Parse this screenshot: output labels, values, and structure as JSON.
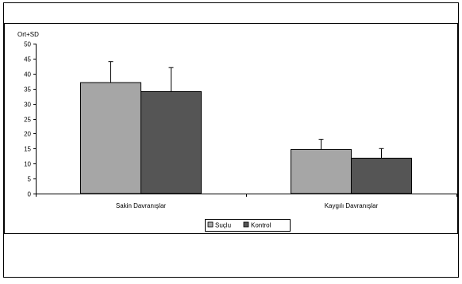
{
  "chart_data": {
    "type": "bar",
    "ylabel": "Ort+SD",
    "ylim": [
      0,
      50
    ],
    "yticks": [
      0,
      5,
      10,
      15,
      20,
      25,
      30,
      35,
      40,
      45,
      50
    ],
    "categories": [
      "Sakin Davranışlar",
      "Kaygılı Davranışlar"
    ],
    "series": [
      {
        "name": "Suçlu",
        "color": "#a6a6a6",
        "values": [
          37,
          14.7
        ],
        "sd": [
          7,
          3.4
        ]
      },
      {
        "name": "Kontrol",
        "color": "#555555",
        "values": [
          34,
          11.8
        ],
        "sd": [
          8,
          3.2
        ]
      }
    ],
    "legend": {
      "placement": "bottom-center",
      "items": [
        "Suçlu",
        "Kontrol"
      ]
    },
    "grid": false
  }
}
